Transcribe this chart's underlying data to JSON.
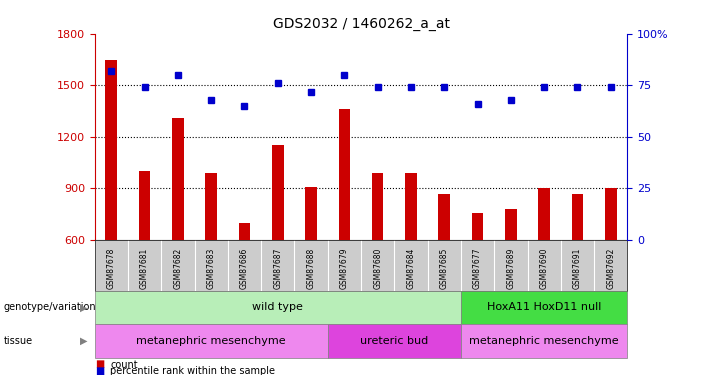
{
  "title": "GDS2032 / 1460262_a_at",
  "samples": [
    "GSM87678",
    "GSM87681",
    "GSM87682",
    "GSM87683",
    "GSM87686",
    "GSM87687",
    "GSM87688",
    "GSM87679",
    "GSM87680",
    "GSM87684",
    "GSM87685",
    "GSM87677",
    "GSM87689",
    "GSM87690",
    "GSM87691",
    "GSM87692"
  ],
  "counts": [
    1650,
    1000,
    1310,
    990,
    700,
    1150,
    910,
    1360,
    990,
    990,
    870,
    760,
    780,
    900,
    870,
    900
  ],
  "percentiles": [
    82,
    74,
    80,
    68,
    65,
    76,
    72,
    80,
    74,
    74,
    74,
    66,
    68,
    74,
    74,
    74
  ],
  "ylim_left": [
    600,
    1800
  ],
  "ylim_right": [
    0,
    100
  ],
  "yticks_left": [
    600,
    900,
    1200,
    1500,
    1800
  ],
  "yticks_right": [
    0,
    25,
    50,
    75,
    100
  ],
  "genotype_groups": [
    {
      "label": "wild type",
      "start": 0,
      "end": 11,
      "color": "#B8EEB8"
    },
    {
      "label": "HoxA11 HoxD11 null",
      "start": 11,
      "end": 16,
      "color": "#44DD44"
    }
  ],
  "tissue_groups": [
    {
      "label": "metanephric mesenchyme",
      "start": 0,
      "end": 7,
      "color": "#EE88EE"
    },
    {
      "label": "ureteric bud",
      "start": 7,
      "end": 11,
      "color": "#DD44DD"
    },
    {
      "label": "metanephric mesenchyme",
      "start": 11,
      "end": 16,
      "color": "#EE88EE"
    }
  ],
  "bar_color": "#CC0000",
  "dot_color": "#0000CC",
  "tick_color_left": "#CC0000",
  "tick_color_right": "#0000CC",
  "sample_bg_color": "#CCCCCC",
  "bar_width": 0.35
}
